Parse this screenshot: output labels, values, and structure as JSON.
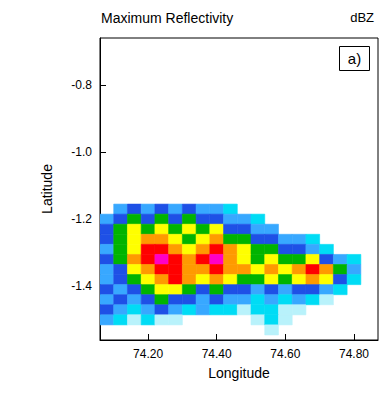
{
  "chart_data": {
    "type": "heatmap",
    "title": "Maximum Reflectivity",
    "units": "dBZ",
    "panel_label": "a)",
    "xlabel": "Longitude",
    "ylabel": "Latitude",
    "xlim": [
      74.06,
      74.87
    ],
    "ylim": [
      -1.56,
      -0.66
    ],
    "xticks": [
      {
        "value": 74.2,
        "label": "74.20"
      },
      {
        "value": 74.4,
        "label": "74.40"
      },
      {
        "value": 74.6,
        "label": "74.60"
      },
      {
        "value": 74.8,
        "label": "74.80"
      }
    ],
    "yticks": [
      -0.8,
      {
        "value": -1.0,
        "label": "-1.0"
      },
      -1.2,
      -1.4
    ],
    "grid": false,
    "color_range": [
      10,
      55
    ],
    "lon": [
      74.08,
      74.12,
      74.16,
      74.2,
      74.24,
      74.28,
      74.32,
      74.36,
      74.4,
      74.44,
      74.48,
      74.52,
      74.56,
      74.6,
      74.64,
      74.68,
      74.72,
      74.76,
      74.8,
      74.84
    ],
    "lat": [
      -1.17,
      -1.2,
      -1.23,
      -1.26,
      -1.29,
      -1.32,
      -1.35,
      -1.38,
      -1.41,
      -1.44,
      -1.47,
      -1.5,
      -1.53
    ],
    "cells": [
      [
        null,
        22,
        27,
        22,
        27,
        22,
        27,
        22,
        22,
        17,
        null,
        null,
        null,
        null,
        null,
        null,
        null,
        null,
        null,
        null
      ],
      [
        22,
        27,
        32,
        27,
        32,
        27,
        32,
        27,
        27,
        22,
        22,
        17,
        null,
        null,
        null,
        null,
        null,
        null,
        null,
        null
      ],
      [
        27,
        32,
        37,
        32,
        37,
        32,
        37,
        32,
        37,
        27,
        27,
        22,
        22,
        null,
        null,
        null,
        null,
        null,
        null,
        null
      ],
      [
        27,
        32,
        37,
        42,
        42,
        37,
        32,
        37,
        42,
        32,
        32,
        27,
        27,
        22,
        22,
        17,
        null,
        null,
        null,
        null
      ],
      [
        22,
        32,
        37,
        47,
        47,
        42,
        37,
        42,
        47,
        42,
        37,
        32,
        32,
        27,
        27,
        22,
        17,
        null,
        null,
        null
      ],
      [
        27,
        32,
        42,
        47,
        52,
        47,
        42,
        47,
        52,
        42,
        37,
        32,
        37,
        32,
        32,
        37,
        27,
        22,
        17,
        null
      ],
      [
        22,
        27,
        37,
        42,
        47,
        47,
        42,
        42,
        47,
        42,
        42,
        37,
        42,
        37,
        42,
        47,
        42,
        32,
        22,
        null
      ],
      [
        22,
        27,
        32,
        37,
        42,
        47,
        42,
        37,
        42,
        37,
        32,
        32,
        37,
        32,
        37,
        42,
        37,
        27,
        17,
        null
      ],
      [
        27,
        22,
        27,
        32,
        37,
        37,
        32,
        27,
        32,
        27,
        27,
        22,
        27,
        22,
        27,
        27,
        22,
        17,
        null,
        null
      ],
      [
        22,
        27,
        22,
        27,
        32,
        27,
        27,
        22,
        27,
        22,
        22,
        17,
        22,
        17,
        22,
        17,
        12,
        null,
        null,
        null
      ],
      [
        27,
        22,
        17,
        22,
        27,
        22,
        17,
        22,
        17,
        17,
        12,
        17,
        17,
        12,
        12,
        null,
        null,
        null,
        null,
        null
      ],
      [
        22,
        17,
        12,
        17,
        12,
        12,
        null,
        null,
        null,
        null,
        null,
        12,
        17,
        12,
        null,
        null,
        null,
        null,
        null,
        null
      ],
      [
        null,
        null,
        null,
        null,
        null,
        null,
        null,
        null,
        null,
        null,
        null,
        null,
        12,
        null,
        null,
        null,
        null,
        null,
        null,
        null
      ]
    ]
  }
}
